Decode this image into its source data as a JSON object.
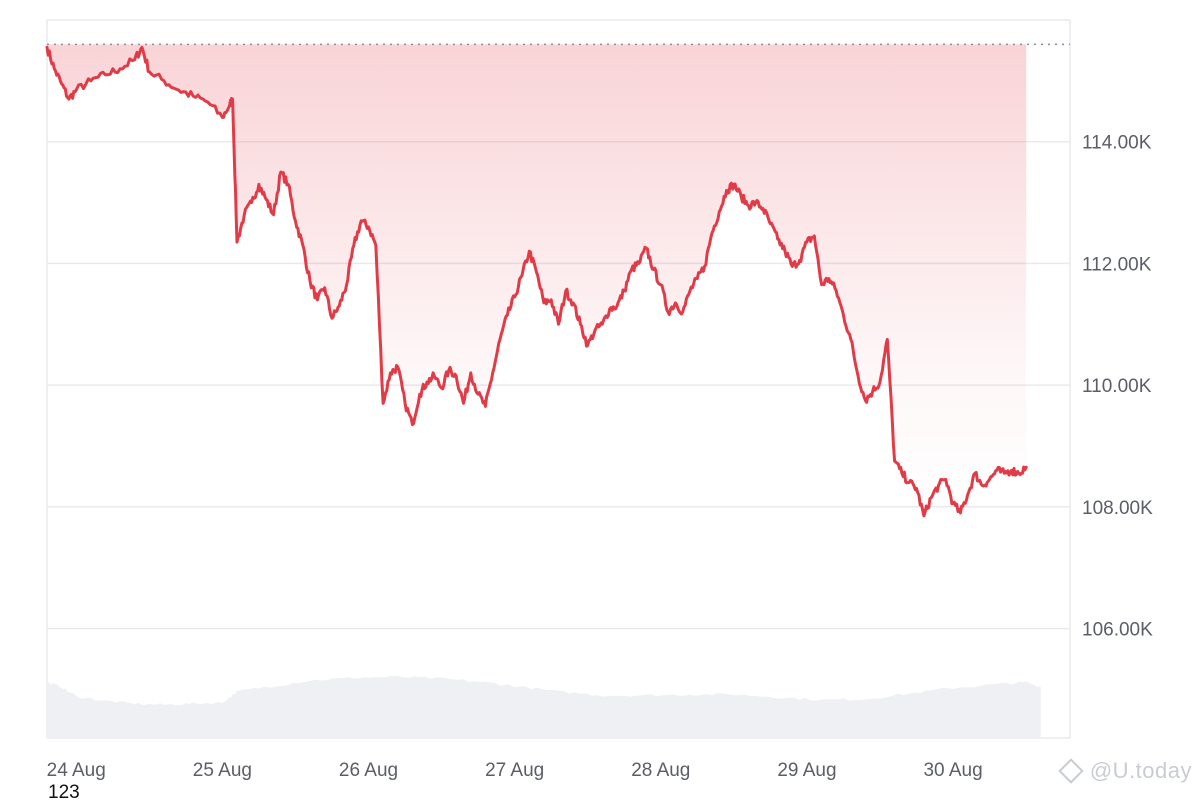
{
  "chart_data": {
    "type": "line",
    "x_tick_labels": [
      "24 Aug",
      "25 Aug",
      "26 Aug",
      "27 Aug",
      "28 Aug",
      "29 Aug",
      "30 Aug"
    ],
    "y_tick_labels": [
      "114.00K",
      "112.00K",
      "110.00K",
      "108.00K",
      "106.00K"
    ],
    "y_ticks": [
      114000,
      112000,
      110000,
      108000,
      106000
    ],
    "ylim": [
      104200,
      116000
    ],
    "x_range_days": [
      -0.2,
      6.8
    ],
    "reference_line": {
      "value": 115600,
      "style": "dotted"
    },
    "price_series": {
      "anchors": [
        [
          -0.2,
          115550
        ],
        [
          -0.15,
          115200
        ],
        [
          -0.1,
          114950
        ],
        [
          -0.05,
          114700
        ],
        [
          0.0,
          114850
        ],
        [
          0.1,
          115000
        ],
        [
          0.2,
          115100
        ],
        [
          0.3,
          115200
        ],
        [
          0.4,
          115350
        ],
        [
          0.45,
          115550
        ],
        [
          0.5,
          115150
        ],
        [
          0.6,
          115000
        ],
        [
          0.7,
          114850
        ],
        [
          0.8,
          114750
        ],
        [
          0.9,
          114650
        ],
        [
          1.0,
          114400
        ],
        [
          1.05,
          114600
        ],
        [
          1.07,
          114700
        ],
        [
          1.1,
          112350
        ],
        [
          1.15,
          112800
        ],
        [
          1.2,
          113000
        ],
        [
          1.25,
          113300
        ],
        [
          1.3,
          113050
        ],
        [
          1.35,
          112800
        ],
        [
          1.4,
          113500
        ],
        [
          1.45,
          113300
        ],
        [
          1.5,
          112700
        ],
        [
          1.55,
          112300
        ],
        [
          1.6,
          111700
        ],
        [
          1.65,
          111400
        ],
        [
          1.7,
          111600
        ],
        [
          1.75,
          111100
        ],
        [
          1.8,
          111300
        ],
        [
          1.85,
          111650
        ],
        [
          1.9,
          112300
        ],
        [
          1.95,
          112700
        ],
        [
          2.0,
          112600
        ],
        [
          2.05,
          112300
        ],
        [
          2.1,
          109700
        ],
        [
          2.15,
          110200
        ],
        [
          2.2,
          110300
        ],
        [
          2.25,
          109700
        ],
        [
          2.3,
          109350
        ],
        [
          2.35,
          109850
        ],
        [
          2.4,
          110050
        ],
        [
          2.45,
          110150
        ],
        [
          2.5,
          109950
        ],
        [
          2.55,
          110250
        ],
        [
          2.6,
          110150
        ],
        [
          2.65,
          109700
        ],
        [
          2.7,
          110200
        ],
        [
          2.75,
          109850
        ],
        [
          2.8,
          109650
        ],
        [
          2.85,
          110200
        ],
        [
          2.9,
          110750
        ],
        [
          2.95,
          111150
        ],
        [
          3.0,
          111450
        ],
        [
          3.05,
          111800
        ],
        [
          3.1,
          112200
        ],
        [
          3.15,
          111850
        ],
        [
          3.2,
          111350
        ],
        [
          3.25,
          111400
        ],
        [
          3.3,
          111000
        ],
        [
          3.35,
          111550
        ],
        [
          3.4,
          111350
        ],
        [
          3.45,
          111000
        ],
        [
          3.5,
          110650
        ],
        [
          3.55,
          110900
        ],
        [
          3.6,
          111000
        ],
        [
          3.65,
          111250
        ],
        [
          3.7,
          111300
        ],
        [
          3.75,
          111550
        ],
        [
          3.8,
          111900
        ],
        [
          3.85,
          112000
        ],
        [
          3.9,
          112250
        ],
        [
          3.95,
          111900
        ],
        [
          4.0,
          111650
        ],
        [
          4.05,
          111200
        ],
        [
          4.1,
          111350
        ],
        [
          4.15,
          111200
        ],
        [
          4.2,
          111550
        ],
        [
          4.25,
          111750
        ],
        [
          4.3,
          111950
        ],
        [
          4.35,
          112500
        ],
        [
          4.4,
          112850
        ],
        [
          4.45,
          113200
        ],
        [
          4.5,
          113300
        ],
        [
          4.55,
          113100
        ],
        [
          4.6,
          112950
        ],
        [
          4.65,
          113000
        ],
        [
          4.7,
          112900
        ],
        [
          4.75,
          112650
        ],
        [
          4.8,
          112400
        ],
        [
          4.85,
          112200
        ],
        [
          4.9,
          111950
        ],
        [
          4.95,
          112050
        ],
        [
          5.0,
          112350
        ],
        [
          5.05,
          112450
        ],
        [
          5.1,
          111650
        ],
        [
          5.15,
          111750
        ],
        [
          5.2,
          111550
        ],
        [
          5.25,
          111150
        ],
        [
          5.3,
          110750
        ],
        [
          5.35,
          110150
        ],
        [
          5.4,
          109750
        ],
        [
          5.45,
          109900
        ],
        [
          5.5,
          110050
        ],
        [
          5.55,
          110750
        ],
        [
          5.6,
          108750
        ],
        [
          5.65,
          108550
        ],
        [
          5.7,
          108400
        ],
        [
          5.75,
          108300
        ],
        [
          5.8,
          107850
        ],
        [
          5.85,
          108150
        ],
        [
          5.9,
          108350
        ],
        [
          5.95,
          108450
        ],
        [
          6.0,
          108050
        ],
        [
          6.05,
          107900
        ],
        [
          6.1,
          108200
        ],
        [
          6.15,
          108550
        ],
        [
          6.2,
          108350
        ],
        [
          6.25,
          108450
        ],
        [
          6.3,
          108600
        ],
        [
          6.35,
          108550
        ],
        [
          6.4,
          108600
        ],
        [
          6.45,
          108550
        ],
        [
          6.5,
          108650
        ]
      ]
    },
    "volume_series": {
      "anchors": [
        [
          -0.2,
          0.6
        ],
        [
          -0.1,
          0.55
        ],
        [
          0.0,
          0.45
        ],
        [
          0.2,
          0.4
        ],
        [
          0.4,
          0.37
        ],
        [
          0.6,
          0.36
        ],
        [
          0.8,
          0.37
        ],
        [
          1.0,
          0.38
        ],
        [
          1.1,
          0.5
        ],
        [
          1.3,
          0.55
        ],
        [
          1.6,
          0.62
        ],
        [
          1.9,
          0.65
        ],
        [
          2.2,
          0.66
        ],
        [
          2.5,
          0.64
        ],
        [
          2.8,
          0.6
        ],
        [
          3.0,
          0.56
        ],
        [
          3.3,
          0.5
        ],
        [
          3.6,
          0.46
        ],
        [
          3.9,
          0.46
        ],
        [
          4.2,
          0.47
        ],
        [
          4.5,
          0.47
        ],
        [
          4.8,
          0.44
        ],
        [
          5.1,
          0.41
        ],
        [
          5.4,
          0.42
        ],
        [
          5.7,
          0.48
        ],
        [
          6.0,
          0.54
        ],
        [
          6.3,
          0.58
        ],
        [
          6.5,
          0.6
        ],
        [
          6.6,
          0.55
        ]
      ]
    },
    "colors": {
      "line": "#e23b48",
      "fill_top": "#e23b48",
      "grid": "#e9eaee",
      "volume": "#eef0f3",
      "reference": "#8c8f96"
    }
  },
  "footer": {
    "number": "123"
  },
  "watermark": {
    "text": "@U.today",
    "icon": "diamond-icon"
  }
}
